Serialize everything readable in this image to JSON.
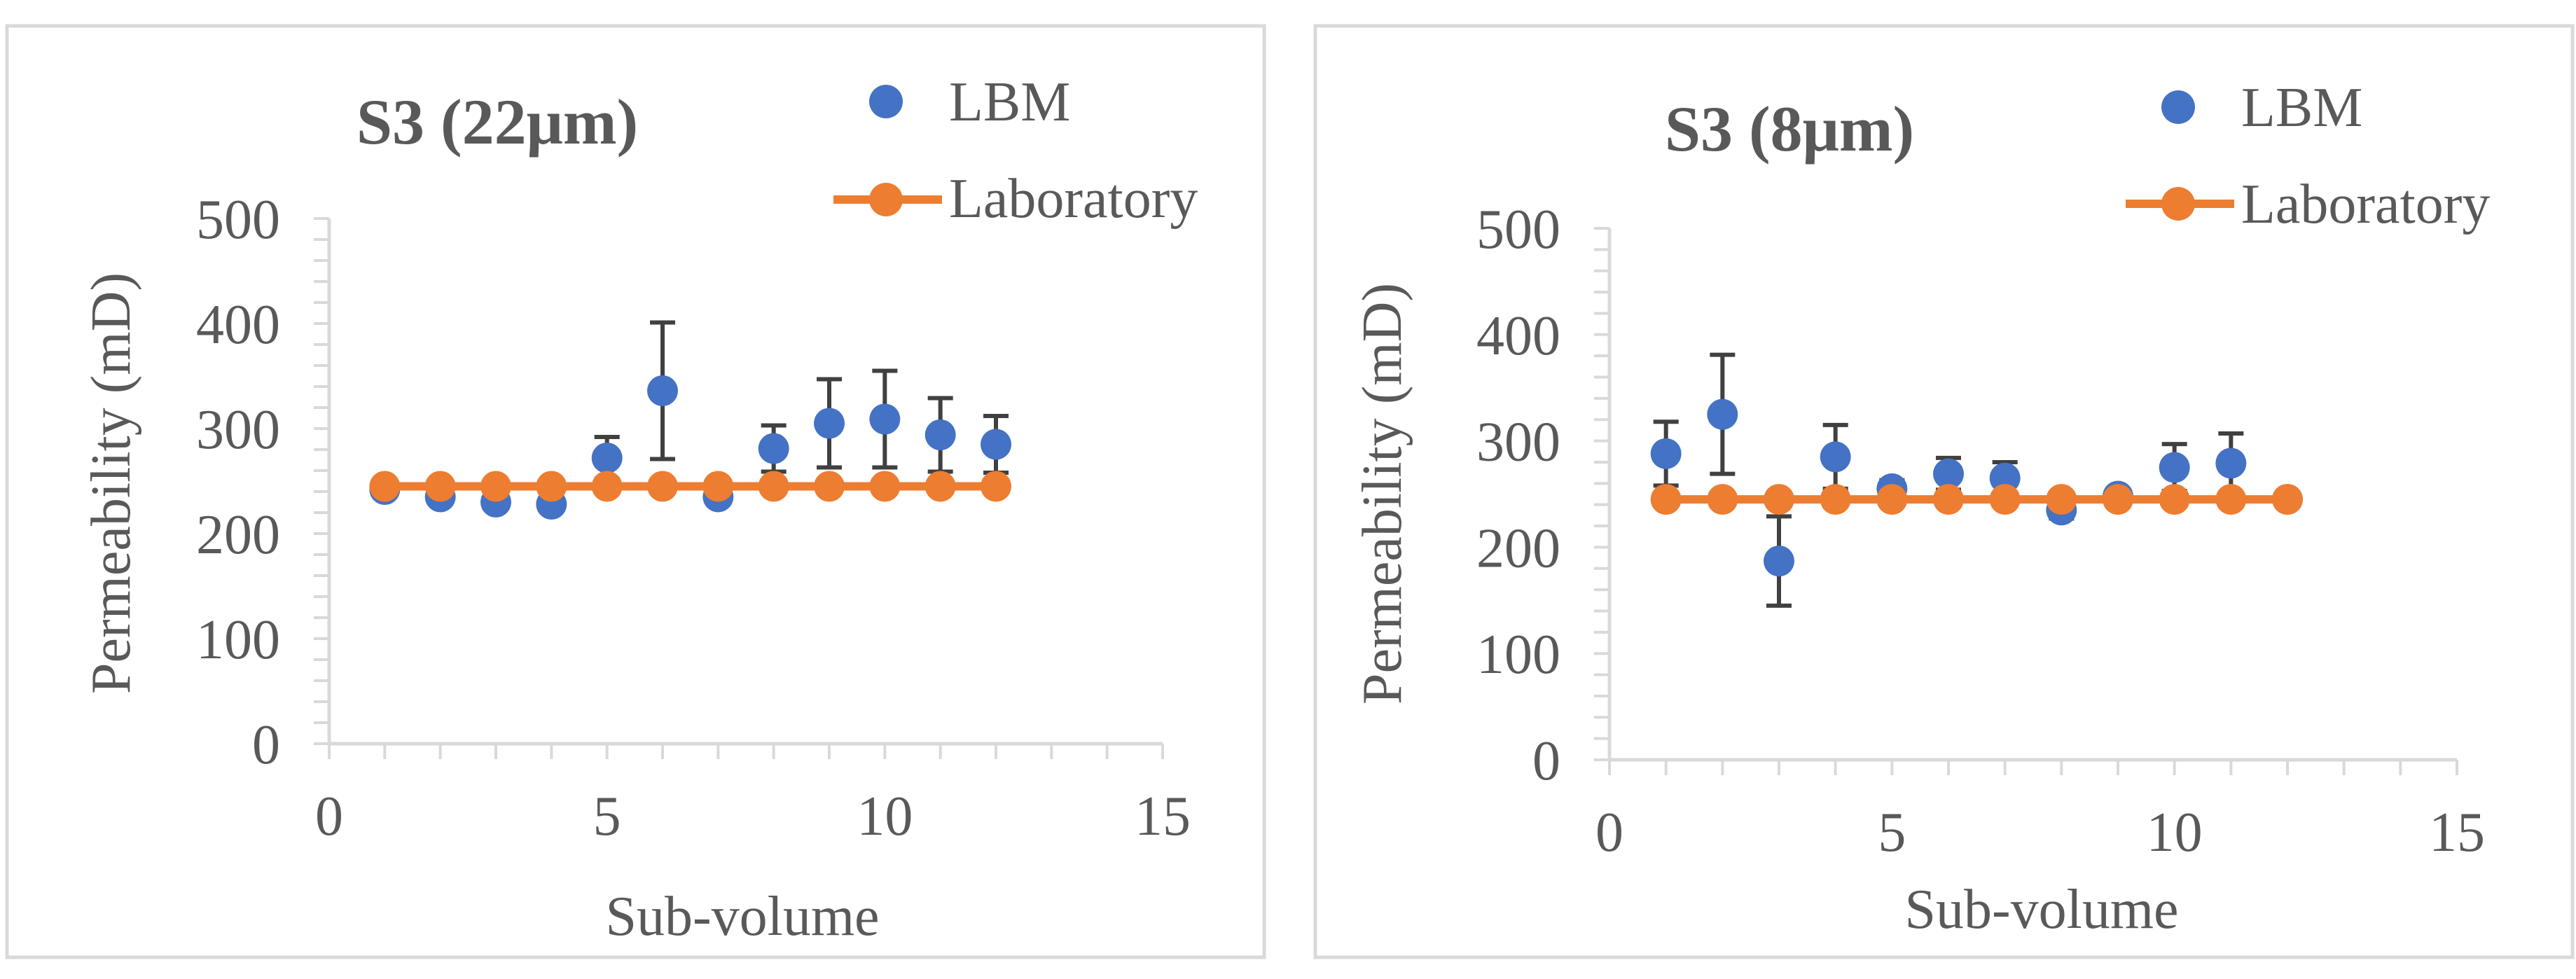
{
  "chart_data": [
    {
      "type": "scatter",
      "title": "S3 (22μm)",
      "xlabel": "Sub-volume",
      "ylabel": "Permeability (mD)",
      "xlim": [
        0,
        15
      ],
      "ylim": [
        0,
        500
      ],
      "xticks": [
        0,
        5,
        10,
        15
      ],
      "yticks": [
        0,
        100,
        200,
        300,
        400,
        500
      ],
      "legend_position": "top-right",
      "colors": {
        "lbm": "#4472c4",
        "laboratory": "#ed7d31"
      },
      "series": [
        {
          "name": "LBM",
          "kind": "scatter",
          "x": [
            1,
            2,
            3,
            4,
            5,
            6,
            7,
            8,
            9,
            10,
            11,
            12
          ],
          "y": [
            242,
            235,
            230,
            228,
            272,
            336,
            235,
            281,
            305,
            309,
            294,
            285
          ],
          "error": [
            5,
            5,
            5,
            5,
            20,
            65,
            5,
            22,
            42,
            46,
            35,
            27
          ]
        },
        {
          "name": "Laboratory",
          "kind": "line",
          "x": [
            1,
            2,
            3,
            4,
            5,
            6,
            7,
            8,
            9,
            10,
            11,
            12
          ],
          "y": [
            245,
            245,
            245,
            245,
            245,
            245,
            245,
            245,
            245,
            245,
            245,
            245
          ]
        }
      ]
    },
    {
      "type": "scatter",
      "title": "S3 (8μm)",
      "xlabel": "Sub-volume",
      "ylabel": "Permeability (mD)",
      "xlim": [
        0,
        15
      ],
      "ylim": [
        0,
        500
      ],
      "xticks": [
        0,
        5,
        10,
        15
      ],
      "yticks": [
        0,
        100,
        200,
        300,
        400,
        500
      ],
      "legend_position": "top-right",
      "colors": {
        "lbm": "#4472c4",
        "laboratory": "#ed7d31"
      },
      "series": [
        {
          "name": "LBM",
          "kind": "scatter",
          "x": [
            1,
            2,
            3,
            4,
            5,
            6,
            7,
            8,
            9,
            10,
            11,
            12
          ],
          "y": [
            288,
            325,
            187,
            285,
            255,
            269,
            265,
            235,
            248,
            275,
            279,
            245
          ],
          "error": [
            30,
            56,
            42,
            30,
            8,
            15,
            15,
            8,
            5,
            22,
            28,
            5
          ]
        },
        {
          "name": "Laboratory",
          "kind": "line",
          "x": [
            1,
            2,
            3,
            4,
            5,
            6,
            7,
            8,
            9,
            10,
            11,
            12
          ],
          "y": [
            245,
            245,
            245,
            245,
            245,
            245,
            245,
            245,
            245,
            245,
            245,
            245
          ]
        }
      ]
    }
  ]
}
